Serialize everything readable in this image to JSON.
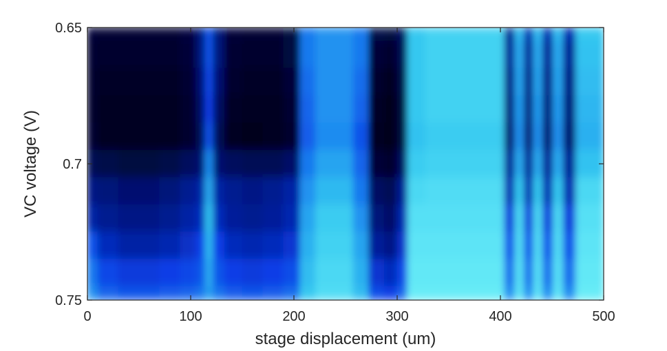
{
  "chart_data": {
    "type": "heatmap",
    "title": "",
    "xlabel": "stage displacement (um)",
    "ylabel": "VC voltage (V)",
    "xlim": [
      0,
      500
    ],
    "ylim": [
      0.65,
      0.75
    ],
    "y_reversed": true,
    "x_ticks": [
      0,
      100,
      200,
      300,
      400,
      500
    ],
    "x_tick_labels": [
      "0",
      "100",
      "200",
      "300",
      "400",
      "500"
    ],
    "y_ticks": [
      0.65,
      0.7,
      0.75
    ],
    "y_tick_labels": [
      "0.65",
      "0.7",
      "0.75"
    ],
    "colormap": [
      "#00001a",
      "#00127a",
      "#0a3ee6",
      "#1e8cf0",
      "#34c8f0",
      "#6ef0f8"
    ],
    "grid": false,
    "legend": "none",
    "x": [
      0,
      20,
      40,
      60,
      80,
      100,
      110,
      118,
      126,
      140,
      160,
      180,
      200,
      212,
      230,
      250,
      265,
      280,
      295,
      305,
      315,
      340,
      360,
      380,
      398,
      410,
      418,
      428,
      436,
      446,
      456,
      466,
      480,
      500
    ],
    "y": [
      0.65,
      0.66,
      0.67,
      0.68,
      0.69,
      0.7,
      0.71,
      0.72,
      0.73,
      0.74,
      0.75
    ],
    "z": [
      [
        0.06,
        0.05,
        0.05,
        0.05,
        0.05,
        0.07,
        0.2,
        0.45,
        0.2,
        0.06,
        0.05,
        0.05,
        0.08,
        0.55,
        0.62,
        0.62,
        0.55,
        0.1,
        0.08,
        0.15,
        0.8,
        0.85,
        0.85,
        0.85,
        0.85,
        0.25,
        0.75,
        0.3,
        0.75,
        0.3,
        0.75,
        0.3,
        0.8,
        0.8
      ],
      [
        0.05,
        0.04,
        0.04,
        0.04,
        0.04,
        0.06,
        0.2,
        0.45,
        0.2,
        0.05,
        0.04,
        0.04,
        0.08,
        0.55,
        0.62,
        0.62,
        0.55,
        0.06,
        0.04,
        0.12,
        0.8,
        0.85,
        0.85,
        0.85,
        0.85,
        0.25,
        0.7,
        0.25,
        0.7,
        0.25,
        0.7,
        0.25,
        0.78,
        0.78
      ],
      [
        0.04,
        0.03,
        0.03,
        0.03,
        0.03,
        0.05,
        0.18,
        0.42,
        0.18,
        0.04,
        0.03,
        0.03,
        0.06,
        0.52,
        0.62,
        0.62,
        0.52,
        0.04,
        0.02,
        0.1,
        0.8,
        0.85,
        0.85,
        0.85,
        0.85,
        0.22,
        0.68,
        0.22,
        0.68,
        0.22,
        0.68,
        0.22,
        0.76,
        0.76
      ],
      [
        0.04,
        0.02,
        0.02,
        0.02,
        0.02,
        0.04,
        0.15,
        0.4,
        0.15,
        0.03,
        0.02,
        0.02,
        0.05,
        0.5,
        0.62,
        0.62,
        0.5,
        0.03,
        0.01,
        0.08,
        0.8,
        0.85,
        0.85,
        0.85,
        0.85,
        0.2,
        0.65,
        0.2,
        0.65,
        0.2,
        0.65,
        0.2,
        0.74,
        0.74
      ],
      [
        0.05,
        0.02,
        0.02,
        0.02,
        0.02,
        0.04,
        0.12,
        0.45,
        0.12,
        0.02,
        0.01,
        0.02,
        0.04,
        0.48,
        0.6,
        0.6,
        0.45,
        0.02,
        0.01,
        0.08,
        0.78,
        0.82,
        0.82,
        0.82,
        0.82,
        0.18,
        0.62,
        0.18,
        0.62,
        0.18,
        0.62,
        0.18,
        0.72,
        0.72
      ],
      [
        0.12,
        0.1,
        0.08,
        0.08,
        0.1,
        0.14,
        0.18,
        0.6,
        0.18,
        0.14,
        0.12,
        0.12,
        0.16,
        0.55,
        0.68,
        0.68,
        0.5,
        0.06,
        0.04,
        0.15,
        0.82,
        0.85,
        0.85,
        0.85,
        0.85,
        0.25,
        0.7,
        0.25,
        0.7,
        0.25,
        0.7,
        0.25,
        0.78,
        0.78
      ],
      [
        0.22,
        0.2,
        0.18,
        0.18,
        0.2,
        0.24,
        0.28,
        0.7,
        0.28,
        0.24,
        0.22,
        0.24,
        0.28,
        0.62,
        0.75,
        0.75,
        0.55,
        0.15,
        0.12,
        0.25,
        0.88,
        0.9,
        0.9,
        0.9,
        0.9,
        0.3,
        0.8,
        0.3,
        0.8,
        0.3,
        0.8,
        0.3,
        0.88,
        0.88
      ],
      [
        0.28,
        0.24,
        0.22,
        0.22,
        0.24,
        0.28,
        0.32,
        0.78,
        0.32,
        0.26,
        0.24,
        0.26,
        0.3,
        0.68,
        0.82,
        0.82,
        0.62,
        0.2,
        0.16,
        0.3,
        0.92,
        0.92,
        0.92,
        0.92,
        0.92,
        0.38,
        0.88,
        0.38,
        0.88,
        0.38,
        0.88,
        0.38,
        0.92,
        0.92
      ],
      [
        0.45,
        0.32,
        0.28,
        0.28,
        0.3,
        0.34,
        0.4,
        0.75,
        0.4,
        0.32,
        0.3,
        0.32,
        0.36,
        0.72,
        0.85,
        0.85,
        0.68,
        0.26,
        0.22,
        0.35,
        0.94,
        0.94,
        0.94,
        0.94,
        0.94,
        0.45,
        0.9,
        0.45,
        0.9,
        0.45,
        0.9,
        0.45,
        0.94,
        0.94
      ],
      [
        0.55,
        0.42,
        0.38,
        0.38,
        0.4,
        0.42,
        0.46,
        0.7,
        0.46,
        0.4,
        0.38,
        0.4,
        0.44,
        0.76,
        0.88,
        0.88,
        0.72,
        0.36,
        0.32,
        0.42,
        0.96,
        0.96,
        0.96,
        0.96,
        0.96,
        0.52,
        0.92,
        0.52,
        0.92,
        0.52,
        0.92,
        0.52,
        0.96,
        0.96
      ],
      [
        0.62,
        0.5,
        0.46,
        0.46,
        0.48,
        0.5,
        0.54,
        0.66,
        0.54,
        0.48,
        0.46,
        0.48,
        0.52,
        0.8,
        0.9,
        0.9,
        0.76,
        0.44,
        0.4,
        0.5,
        0.98,
        0.98,
        0.98,
        0.98,
        0.98,
        0.6,
        0.94,
        0.6,
        0.94,
        0.6,
        0.94,
        0.6,
        0.98,
        0.98
      ]
    ]
  }
}
